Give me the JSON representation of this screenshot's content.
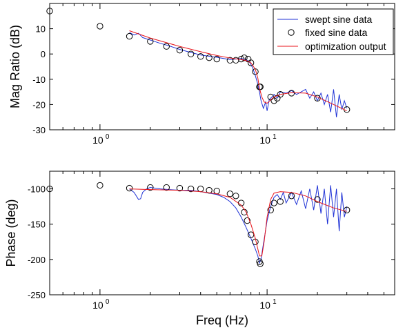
{
  "colors": {
    "swept": "#1f32d6",
    "fixed": "#000000",
    "optimization": "#e8141b",
    "axis": "#000000",
    "background": "#ffffff"
  },
  "legend": {
    "placement": "top-right",
    "items": [
      {
        "label": "swept sine data",
        "style": "line",
        "color": "#1f32d6"
      },
      {
        "label": "fixed sine data",
        "style": "marker-circle",
        "color": "#000000"
      },
      {
        "label": "optimization output",
        "style": "line",
        "color": "#e8141b"
      }
    ]
  },
  "xlabel": "Freq (Hz)",
  "chart_data": [
    {
      "type": "line",
      "title": "",
      "ylabel": "Mag Ratio (dB)",
      "xscale": "log",
      "xlim": [
        0.5,
        58
      ],
      "ylim": [
        -30,
        20
      ],
      "yticks": [
        -30,
        -20,
        -10,
        0,
        10
      ],
      "xticks": [
        {
          "value": 1,
          "base": "10",
          "exp": "0"
        },
        {
          "value": 10,
          "base": "10",
          "exp": "1"
        }
      ],
      "grid": false,
      "series": [
        {
          "name": "swept sine data",
          "color": "#1f32d6",
          "x": [
            1.5,
            1.6,
            1.7,
            1.8,
            2.0,
            2.3,
            2.6,
            3.0,
            3.5,
            4.0,
            4.5,
            5.0,
            5.5,
            6.0,
            6.5,
            7.0,
            7.3,
            7.6,
            7.9,
            8.2,
            8.5,
            8.8,
            9.0,
            9.2,
            9.5,
            9.8,
            10.0,
            10.3,
            10.7,
            11.0,
            11.5,
            12.0,
            13.0,
            14.0,
            15.0,
            16.0,
            17.0,
            18.0,
            19.0,
            20.0,
            21.0,
            22.0,
            23.0,
            24.0,
            25.0,
            26.0,
            27.0,
            28.0,
            29.0,
            30.0
          ],
          "y": [
            8.5,
            7.5,
            8.2,
            6.5,
            5.5,
            4.2,
            3.2,
            1.8,
            0.6,
            -0.4,
            -0.9,
            -1.3,
            -1.8,
            -2.2,
            -2.0,
            -1.8,
            -2.0,
            -2.5,
            -3.5,
            -5.5,
            -8.5,
            -12.0,
            -15.0,
            -18.5,
            -21.5,
            -19.0,
            -22.5,
            -18.0,
            -17.0,
            -16.0,
            -17.5,
            -15.0,
            -15.5,
            -14.5,
            -16.0,
            -15.0,
            -14.0,
            -17.5,
            -15.0,
            -18.5,
            -15.5,
            -20.0,
            -16.0,
            -23.0,
            -14.0,
            -25.0,
            -16.0,
            -22.0,
            -18.5,
            -21.5
          ]
        },
        {
          "name": "fixed sine data",
          "color": "#000000",
          "marker": "circle",
          "x": [
            0.5,
            1.0,
            1.5,
            2.0,
            2.5,
            3.0,
            3.5,
            4.0,
            4.5,
            5.0,
            6.0,
            6.5,
            7.0,
            7.3,
            7.7,
            8.0,
            8.5,
            9.0,
            9.1,
            10.5,
            11.0,
            11.5,
            12.0,
            14.0,
            20.0,
            30.0
          ],
          "y": [
            17,
            11,
            7,
            5,
            3,
            1.5,
            0,
            -1,
            -1.5,
            -2,
            -2.5,
            -2.5,
            -2,
            -1.5,
            -2,
            -3.5,
            -7,
            -13,
            -13,
            -17,
            -18.5,
            -17.5,
            -16,
            -15.5,
            -17.5,
            -22
          ]
        },
        {
          "name": "optimization output",
          "color": "#e8141b",
          "x": [
            1.5,
            2.0,
            3.0,
            4.0,
            5.0,
            6.0,
            7.0,
            7.5,
            8.0,
            8.5,
            8.8,
            9.0,
            9.3,
            9.6,
            10.0,
            11.0,
            12.0,
            14.0,
            17.0,
            20.0,
            25.0,
            30.0
          ],
          "y": [
            9.2,
            6.3,
            3.0,
            0.9,
            -0.6,
            -1.6,
            -2.2,
            -2.6,
            -3.5,
            -6.0,
            -9.5,
            -13.5,
            -17.0,
            -19.0,
            -19.5,
            -17.0,
            -16.0,
            -15.3,
            -15.5,
            -17.0,
            -20.0,
            -22.5
          ]
        }
      ]
    },
    {
      "type": "line",
      "title": "",
      "ylabel": "Phase (deg)",
      "xscale": "log",
      "xlim": [
        0.5,
        58
      ],
      "ylim": [
        -250,
        -75
      ],
      "yticks": [
        -250,
        -200,
        -150,
        -100
      ],
      "xticks": [
        {
          "value": 1,
          "base": "10",
          "exp": "0"
        },
        {
          "value": 10,
          "base": "10",
          "exp": "1"
        }
      ],
      "grid": false,
      "series": [
        {
          "name": "swept sine data",
          "color": "#1f32d6",
          "x": [
            1.5,
            1.6,
            1.7,
            1.75,
            1.8,
            1.9,
            2.0,
            2.3,
            2.6,
            3.0,
            3.5,
            4.0,
            4.5,
            5.0,
            5.5,
            6.0,
            6.5,
            7.0,
            7.5,
            8.0,
            8.5,
            8.8,
            9.0,
            9.2,
            9.4,
            9.7,
            10.0,
            10.5,
            11.0,
            11.5,
            12.0,
            12.5,
            13.0,
            14.0,
            15.0,
            16.0,
            17.0,
            18.0,
            19.0,
            20.0,
            21.0,
            22.0,
            23.0,
            24.0,
            25.0,
            26.0,
            27.0,
            28.0,
            29.0,
            30.0
          ],
          "y": [
            -100,
            -105,
            -115,
            -114,
            -105,
            -100,
            -98,
            -100,
            -101,
            -102,
            -102,
            -104,
            -106,
            -108,
            -112,
            -118,
            -127,
            -140,
            -155,
            -170,
            -185,
            -195,
            -205,
            -200,
            -185,
            -165,
            -145,
            -125,
            -112,
            -108,
            -115,
            -105,
            -120,
            -105,
            -122,
            -103,
            -128,
            -100,
            -130,
            -95,
            -135,
            -100,
            -150,
            -95,
            -140,
            -100,
            -160,
            -105,
            -140,
            -125
          ]
        },
        {
          "name": "fixed sine data",
          "color": "#000000",
          "marker": "circle",
          "x": [
            0.5,
            1.0,
            1.5,
            2.0,
            2.5,
            3.0,
            3.5,
            4.0,
            4.5,
            5.0,
            6.0,
            6.5,
            7.0,
            7.3,
            7.6,
            8.0,
            8.5,
            9.0,
            9.1,
            10.5,
            11.0,
            12.0,
            14.0,
            20.0,
            30.0
          ],
          "y": [
            -100,
            -95,
            -99,
            -98,
            -98,
            -99,
            -100,
            -100,
            -102,
            -103,
            -107,
            -110,
            -120,
            -133,
            -145,
            -165,
            -175,
            -203,
            -206,
            -130,
            -120,
            -118,
            -110,
            -115,
            -130
          ]
        },
        {
          "name": "optimization output",
          "color": "#e8141b",
          "x": [
            1.5,
            2.0,
            3.0,
            4.0,
            5.0,
            6.0,
            7.0,
            7.5,
            8.0,
            8.5,
            8.8,
            9.0,
            9.3,
            9.6,
            10.0,
            10.5,
            11.0,
            12.0,
            14.0,
            17.0,
            20.0,
            25.0,
            30.0
          ],
          "y": [
            -100,
            -101,
            -102,
            -104,
            -107,
            -112,
            -123,
            -133,
            -150,
            -170,
            -185,
            -195,
            -195,
            -175,
            -140,
            -115,
            -106,
            -104,
            -105,
            -110,
            -118,
            -127,
            -132
          ]
        }
      ]
    }
  ]
}
